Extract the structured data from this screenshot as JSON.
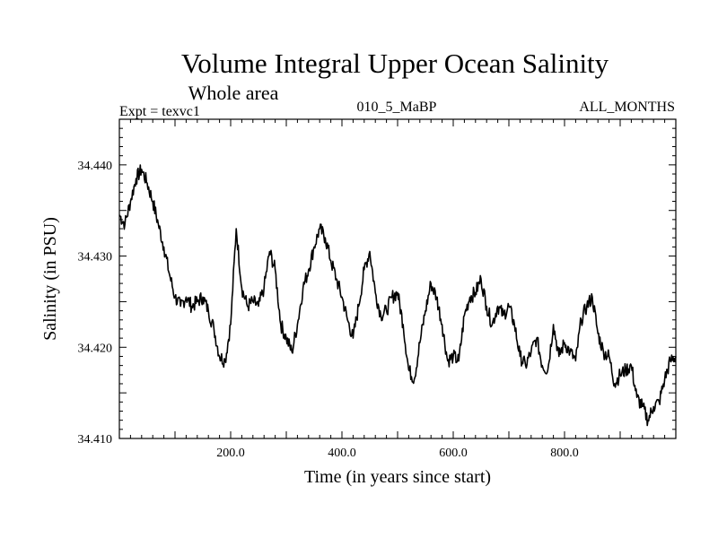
{
  "chart_data": {
    "type": "line",
    "title": "Volume Integral Upper Ocean Salinity",
    "subtitle": "Whole area",
    "header_left": "Expt = texvc1",
    "header_center": "010_5_MaBP",
    "header_right": "ALL_MONTHS",
    "xlabel": "Time (in years since start)",
    "ylabel": "Salinity (in PSU)",
    "xlim": [
      0,
      1000
    ],
    "ylim": [
      34.41,
      34.445
    ],
    "x_ticks": [
      200,
      400,
      600,
      800
    ],
    "x_tick_labels": [
      "200.0",
      "400.0",
      "600.0",
      "800.0"
    ],
    "y_ticks": [
      34.41,
      34.42,
      34.43,
      34.44
    ],
    "y_tick_labels": [
      "34.410",
      "34.420",
      "34.430",
      "34.440"
    ],
    "series": [
      {
        "name": "Salinity",
        "x": [
          0,
          10,
          20,
          30,
          40,
          50,
          60,
          70,
          80,
          90,
          100,
          110,
          120,
          130,
          140,
          150,
          160,
          170,
          180,
          190,
          200,
          210,
          220,
          230,
          240,
          250,
          260,
          270,
          280,
          290,
          300,
          310,
          320,
          330,
          340,
          350,
          360,
          370,
          380,
          390,
          400,
          410,
          420,
          430,
          440,
          450,
          460,
          470,
          480,
          490,
          500,
          510,
          520,
          530,
          540,
          550,
          560,
          570,
          580,
          590,
          600,
          610,
          620,
          630,
          640,
          650,
          660,
          670,
          680,
          690,
          700,
          710,
          720,
          730,
          740,
          750,
          760,
          770,
          780,
          790,
          800,
          810,
          820,
          830,
          840,
          850,
          860,
          870,
          880,
          890,
          900,
          910,
          920,
          930,
          940,
          950,
          960,
          970,
          980,
          990,
          1000
        ],
        "values": [
          34.4345,
          34.4335,
          34.436,
          34.4385,
          34.4395,
          34.438,
          34.436,
          34.4335,
          34.431,
          34.428,
          34.4255,
          34.4245,
          34.4255,
          34.4245,
          34.425,
          34.4255,
          34.424,
          34.422,
          34.419,
          34.4185,
          34.4225,
          34.433,
          34.4265,
          34.4245,
          34.425,
          34.4245,
          34.4265,
          34.4305,
          34.4285,
          34.4225,
          34.421,
          34.4195,
          34.4225,
          34.4265,
          34.4285,
          34.431,
          34.433,
          34.432,
          34.4295,
          34.4275,
          34.4255,
          34.423,
          34.421,
          34.4245,
          34.4285,
          34.4305,
          34.426,
          34.4235,
          34.424,
          34.4255,
          34.426,
          34.4225,
          34.4175,
          34.4165,
          34.4205,
          34.424,
          34.427,
          34.4255,
          34.4225,
          34.4185,
          34.419,
          34.4185,
          34.4235,
          34.4255,
          34.426,
          34.4275,
          34.4245,
          34.4225,
          34.4245,
          34.4235,
          34.4245,
          34.4225,
          34.419,
          34.418,
          34.4195,
          34.421,
          34.418,
          34.4175,
          34.4225,
          34.419,
          34.4205,
          34.4195,
          34.4185,
          34.423,
          34.4245,
          34.4255,
          34.4215,
          34.4195,
          34.419,
          34.416,
          34.417,
          34.4175,
          34.418,
          34.4145,
          34.4135,
          34.412,
          34.4135,
          34.414,
          34.4165,
          34.4185,
          34.419
        ]
      }
    ]
  }
}
